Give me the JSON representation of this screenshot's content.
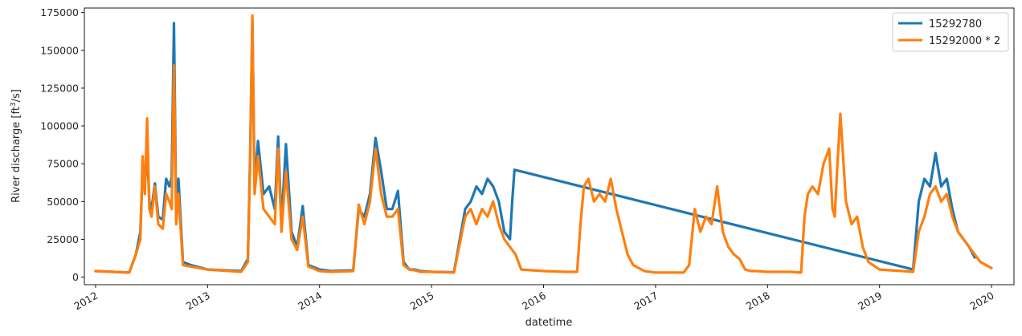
{
  "chart_data": {
    "type": "line",
    "title": "",
    "xlabel": "datetime",
    "ylabel_prefix": "River discharge [ft",
    "ylabel_sup": "3",
    "ylabel_suffix": "/s]",
    "xlim": [
      2011.9,
      2020.2
    ],
    "ylim": [
      -5000,
      178000
    ],
    "grid": false,
    "legend_position": "top-right",
    "y_ticks": [
      0,
      25000,
      50000,
      75000,
      100000,
      125000,
      150000,
      175000
    ],
    "y_tick_labels": [
      "0",
      "25000",
      "50000",
      "75000",
      "100000",
      "125000",
      "150000",
      "175000"
    ],
    "x_ticks": [
      2012,
      2013,
      2014,
      2015,
      2016,
      2017,
      2018,
      2019,
      2020
    ],
    "x_tick_labels": [
      "2012",
      "2013",
      "2014",
      "2015",
      "2016",
      "2017",
      "2018",
      "2019",
      "2020"
    ],
    "series": [
      {
        "name": "15292780",
        "color": "#1f77b4",
        "x": [
          2012.0,
          2012.3,
          2012.36,
          2012.4,
          2012.42,
          2012.44,
          2012.46,
          2012.48,
          2012.5,
          2012.53,
          2012.56,
          2012.6,
          2012.63,
          2012.66,
          2012.68,
          2012.7,
          2012.72,
          2012.74,
          2012.78,
          2012.85,
          2013.0,
          2013.3,
          2013.36,
          2013.38,
          2013.4,
          2013.42,
          2013.45,
          2013.5,
          2013.55,
          2013.6,
          2013.63,
          2013.66,
          2013.7,
          2013.75,
          2013.8,
          2013.85,
          2013.9,
          2014.0,
          2014.1,
          2014.3,
          2014.35,
          2014.4,
          2014.45,
          2014.5,
          2014.55,
          2014.6,
          2014.65,
          2014.7,
          2014.75,
          2014.8,
          2014.85,
          2014.9,
          2015.0,
          2015.2,
          2015.3,
          2015.35,
          2015.4,
          2015.45,
          2015.5,
          2015.55,
          2015.6,
          2015.65,
          2015.7,
          2015.72,
          2015.74,
          2019.3,
          2019.35,
          2019.4,
          2019.45,
          2019.5,
          2019.55,
          2019.6,
          2019.65,
          2019.7,
          2019.75,
          2019.8,
          2019.85
        ],
        "values": [
          4000,
          3000,
          15000,
          30000,
          70000,
          60000,
          85000,
          50000,
          45000,
          62000,
          40000,
          38000,
          65000,
          60000,
          66000,
          168000,
          40000,
          65000,
          10000,
          8000,
          5000,
          4000,
          12000,
          80000,
          170000,
          60000,
          90000,
          55000,
          60000,
          45000,
          93000,
          35000,
          88000,
          30000,
          20000,
          47000,
          8000,
          5000,
          4000,
          4500,
          45000,
          40000,
          55000,
          92000,
          70000,
          45000,
          45000,
          57000,
          10000,
          5000,
          5000,
          4000,
          3500,
          3200,
          45000,
          50000,
          60000,
          55000,
          65000,
          60000,
          50000,
          30000,
          25000,
          50000,
          71000,
          5000,
          50000,
          65000,
          60000,
          82000,
          60000,
          65000,
          45000,
          30000,
          25000,
          20000,
          13000
        ]
      },
      {
        "name": "15292000 * 2",
        "color": "#ff7f0e",
        "x": [
          2012.0,
          2012.3,
          2012.36,
          2012.4,
          2012.42,
          2012.44,
          2012.46,
          2012.48,
          2012.5,
          2012.53,
          2012.56,
          2012.6,
          2012.63,
          2012.66,
          2012.68,
          2012.7,
          2012.72,
          2012.74,
          2012.78,
          2012.85,
          2013.0,
          2013.3,
          2013.36,
          2013.38,
          2013.4,
          2013.42,
          2013.45,
          2013.5,
          2013.55,
          2013.6,
          2013.63,
          2013.66,
          2013.7,
          2013.75,
          2013.8,
          2013.85,
          2013.9,
          2014.0,
          2014.1,
          2014.3,
          2014.35,
          2014.4,
          2014.45,
          2014.5,
          2014.55,
          2014.6,
          2014.65,
          2014.7,
          2014.75,
          2014.8,
          2014.85,
          2014.9,
          2015.0,
          2015.2,
          2015.3,
          2015.35,
          2015.4,
          2015.45,
          2015.5,
          2015.55,
          2015.6,
          2015.65,
          2015.7,
          2015.75,
          2015.8,
          2016.0,
          2016.2,
          2016.3,
          2016.33,
          2016.36,
          2016.4,
          2016.45,
          2016.5,
          2016.55,
          2016.6,
          2016.65,
          2016.7,
          2016.75,
          2016.8,
          2016.9,
          2017.0,
          2017.25,
          2017.3,
          2017.35,
          2017.4,
          2017.45,
          2017.5,
          2017.55,
          2017.6,
          2017.65,
          2017.7,
          2017.75,
          2017.8,
          2017.85,
          2017.9,
          2018.0,
          2018.2,
          2018.3,
          2018.33,
          2018.36,
          2018.4,
          2018.45,
          2018.5,
          2018.55,
          2018.58,
          2018.6,
          2018.62,
          2018.65,
          2018.7,
          2018.75,
          2018.8,
          2018.85,
          2018.9,
          2019.0,
          2019.2,
          2019.3,
          2019.35,
          2019.4,
          2019.45,
          2019.5,
          2019.55,
          2019.6,
          2019.65,
          2019.7,
          2019.75,
          2019.8,
          2019.85,
          2019.9,
          2020.0
        ],
        "values": [
          4000,
          3000,
          15000,
          25000,
          80000,
          55000,
          105000,
          45000,
          40000,
          60000,
          35000,
          32000,
          55000,
          50000,
          45000,
          140000,
          35000,
          55000,
          8000,
          7000,
          5000,
          3500,
          10000,
          75000,
          173000,
          55000,
          80000,
          45000,
          40000,
          35000,
          85000,
          30000,
          70000,
          25000,
          18000,
          40000,
          7000,
          4000,
          3500,
          4000,
          48000,
          35000,
          50000,
          85000,
          55000,
          40000,
          40000,
          45000,
          8000,
          5000,
          4500,
          3500,
          3500,
          3000,
          40000,
          45000,
          35000,
          45000,
          40000,
          50000,
          35000,
          25000,
          20000,
          15000,
          5000,
          4000,
          3500,
          3500,
          35000,
          60000,
          65000,
          50000,
          55000,
          50000,
          65000,
          45000,
          30000,
          15000,
          8000,
          4000,
          3000,
          3000,
          8000,
          45000,
          30000,
          40000,
          35000,
          60000,
          30000,
          20000,
          15000,
          12000,
          5000,
          4000,
          4000,
          3500,
          3500,
          3000,
          40000,
          55000,
          60000,
          55000,
          75000,
          85000,
          45000,
          40000,
          70000,
          108000,
          50000,
          35000,
          40000,
          20000,
          10000,
          5000,
          4000,
          3500,
          30000,
          40000,
          55000,
          60000,
          50000,
          55000,
          40000,
          30000,
          25000,
          20000,
          15000,
          10000,
          6000
        ]
      }
    ]
  }
}
